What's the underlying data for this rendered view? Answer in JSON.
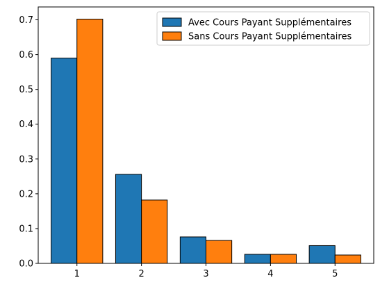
{
  "chart_data": {
    "type": "bar",
    "categories": [
      "1",
      "2",
      "3",
      "4",
      "5"
    ],
    "series": [
      {
        "name": "Avec Cours Payant Supplémentaires",
        "color": "#1f77b4",
        "values": [
          0.59,
          0.256,
          0.076,
          0.026,
          0.051
        ]
      },
      {
        "name": "Sans Cours Payant Supplémentaires",
        "color": "#ff7f0e",
        "values": [
          0.702,
          0.182,
          0.066,
          0.026,
          0.024
        ]
      }
    ],
    "title": "",
    "xlabel": "",
    "ylabel": "",
    "ylim": [
      0,
      0.737
    ],
    "yticks": [
      "0.0",
      "0.1",
      "0.2",
      "0.3",
      "0.4",
      "0.5",
      "0.6",
      "0.7"
    ],
    "grid": false,
    "legend_position": "top-right"
  }
}
